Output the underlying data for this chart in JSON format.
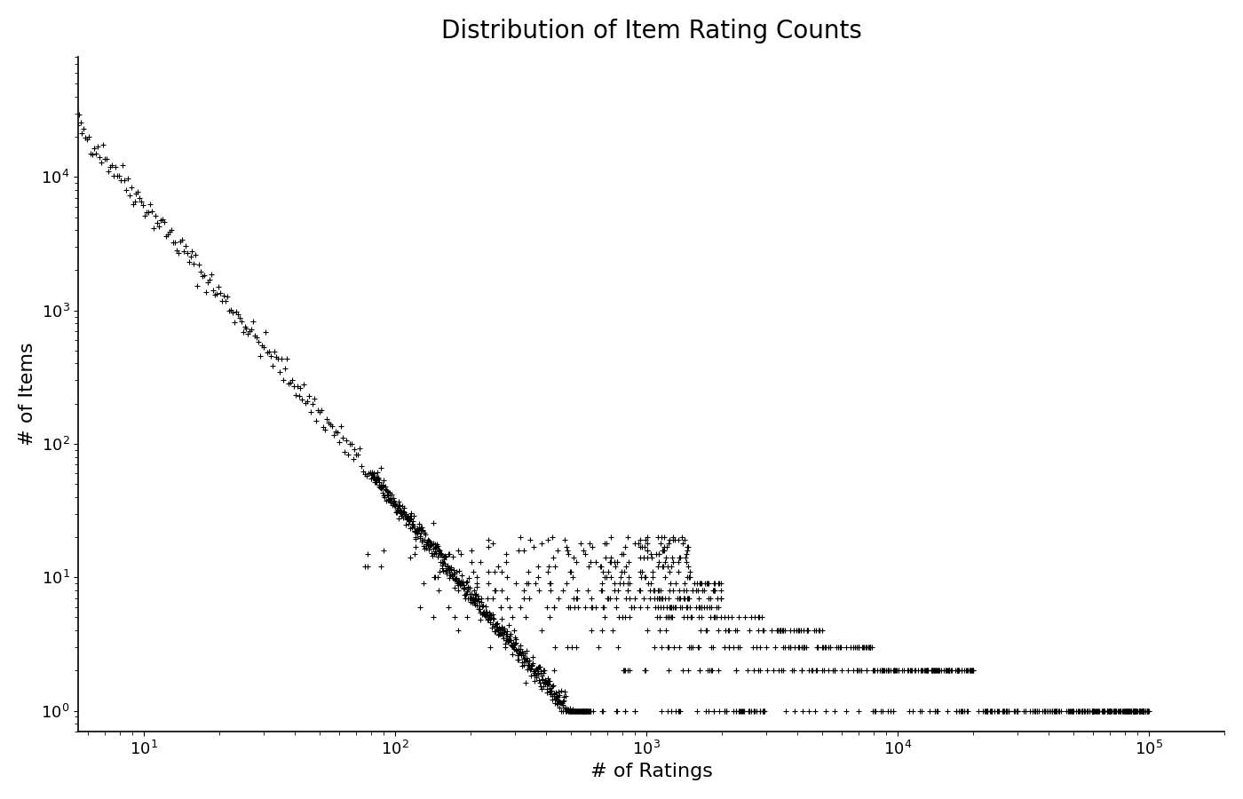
{
  "title": "Distribution of Item Rating Counts",
  "xlabel": "# of Ratings",
  "ylabel": "# of Items",
  "marker": "+",
  "marker_color": "#000000",
  "background_color": "#ffffff",
  "title_fontsize": 20,
  "label_fontsize": 16,
  "tick_fontsize": 13,
  "seed": 42
}
